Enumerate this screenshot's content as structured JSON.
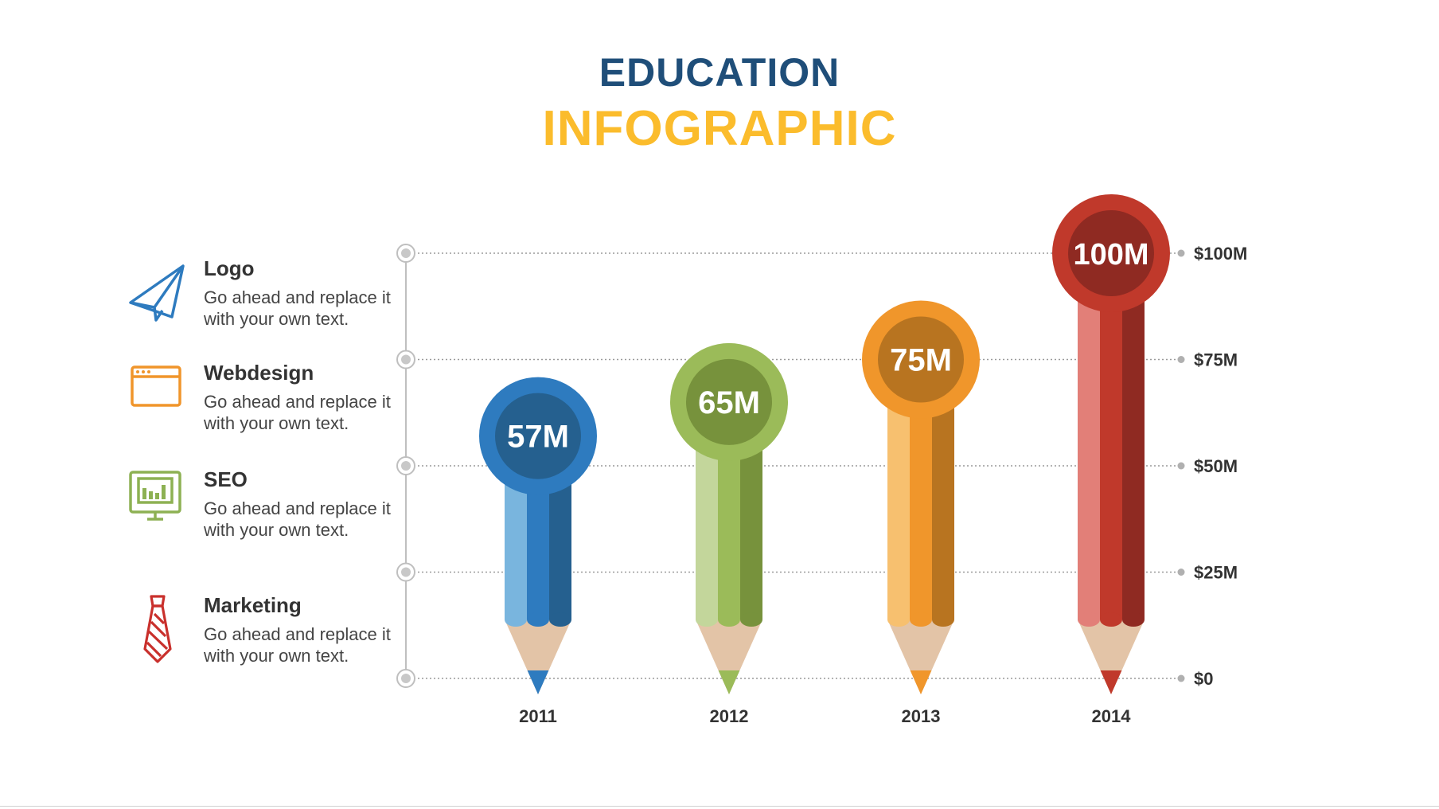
{
  "header": {
    "title_line1": "EDUCATION",
    "title_line2": "INFOGRAPHIC",
    "title_line1_color": "#1f4e79",
    "title_line2_color": "#fbbc2c"
  },
  "legend": [
    {
      "title": "Logo",
      "desc": "Go ahead and replace it with your own text.",
      "icon": "paper-plane-icon",
      "color": "#2e7bbf"
    },
    {
      "title": "Webdesign",
      "desc": "Go ahead and replace it with your own text.",
      "icon": "browser-window-icon",
      "color": "#f0952b"
    },
    {
      "title": "SEO",
      "desc": "Go ahead and replace it with your own text.",
      "icon": "monitor-chart-icon",
      "color": "#8db153"
    },
    {
      "title": "Marketing",
      "desc": "Go ahead and replace it with your own text.",
      "icon": "necktie-icon",
      "color": "#c9302c"
    }
  ],
  "chart_data": {
    "type": "bar",
    "categories": [
      "2011",
      "2012",
      "2013",
      "2014"
    ],
    "values": [
      57,
      65,
      75,
      100
    ],
    "value_labels": [
      "57M",
      "65M",
      "75M",
      "100M"
    ],
    "ylim": [
      0,
      100
    ],
    "y_ticks": [
      0,
      25,
      50,
      75,
      100
    ],
    "y_tick_labels": [
      "$0",
      "$25M",
      "$50M",
      "$75M",
      "$100M"
    ],
    "grid": true,
    "colors": [
      {
        "light": "#79b5de",
        "mid": "#2e7bbf",
        "dark": "#25608f",
        "inner": "#25608f"
      },
      {
        "light": "#c3d69b",
        "mid": "#9bbb59",
        "dark": "#77923c",
        "inner": "#77923c"
      },
      {
        "light": "#f7c06f",
        "mid": "#f0962b",
        "dark": "#b87420",
        "inner": "#b87420"
      },
      {
        "light": "#e27f78",
        "mid": "#c0392b",
        "dark": "#8f2a22",
        "inner": "#8f2a22"
      }
    ],
    "wood_color": "#e3c4a7",
    "axis_color": "#bfbfbf"
  }
}
